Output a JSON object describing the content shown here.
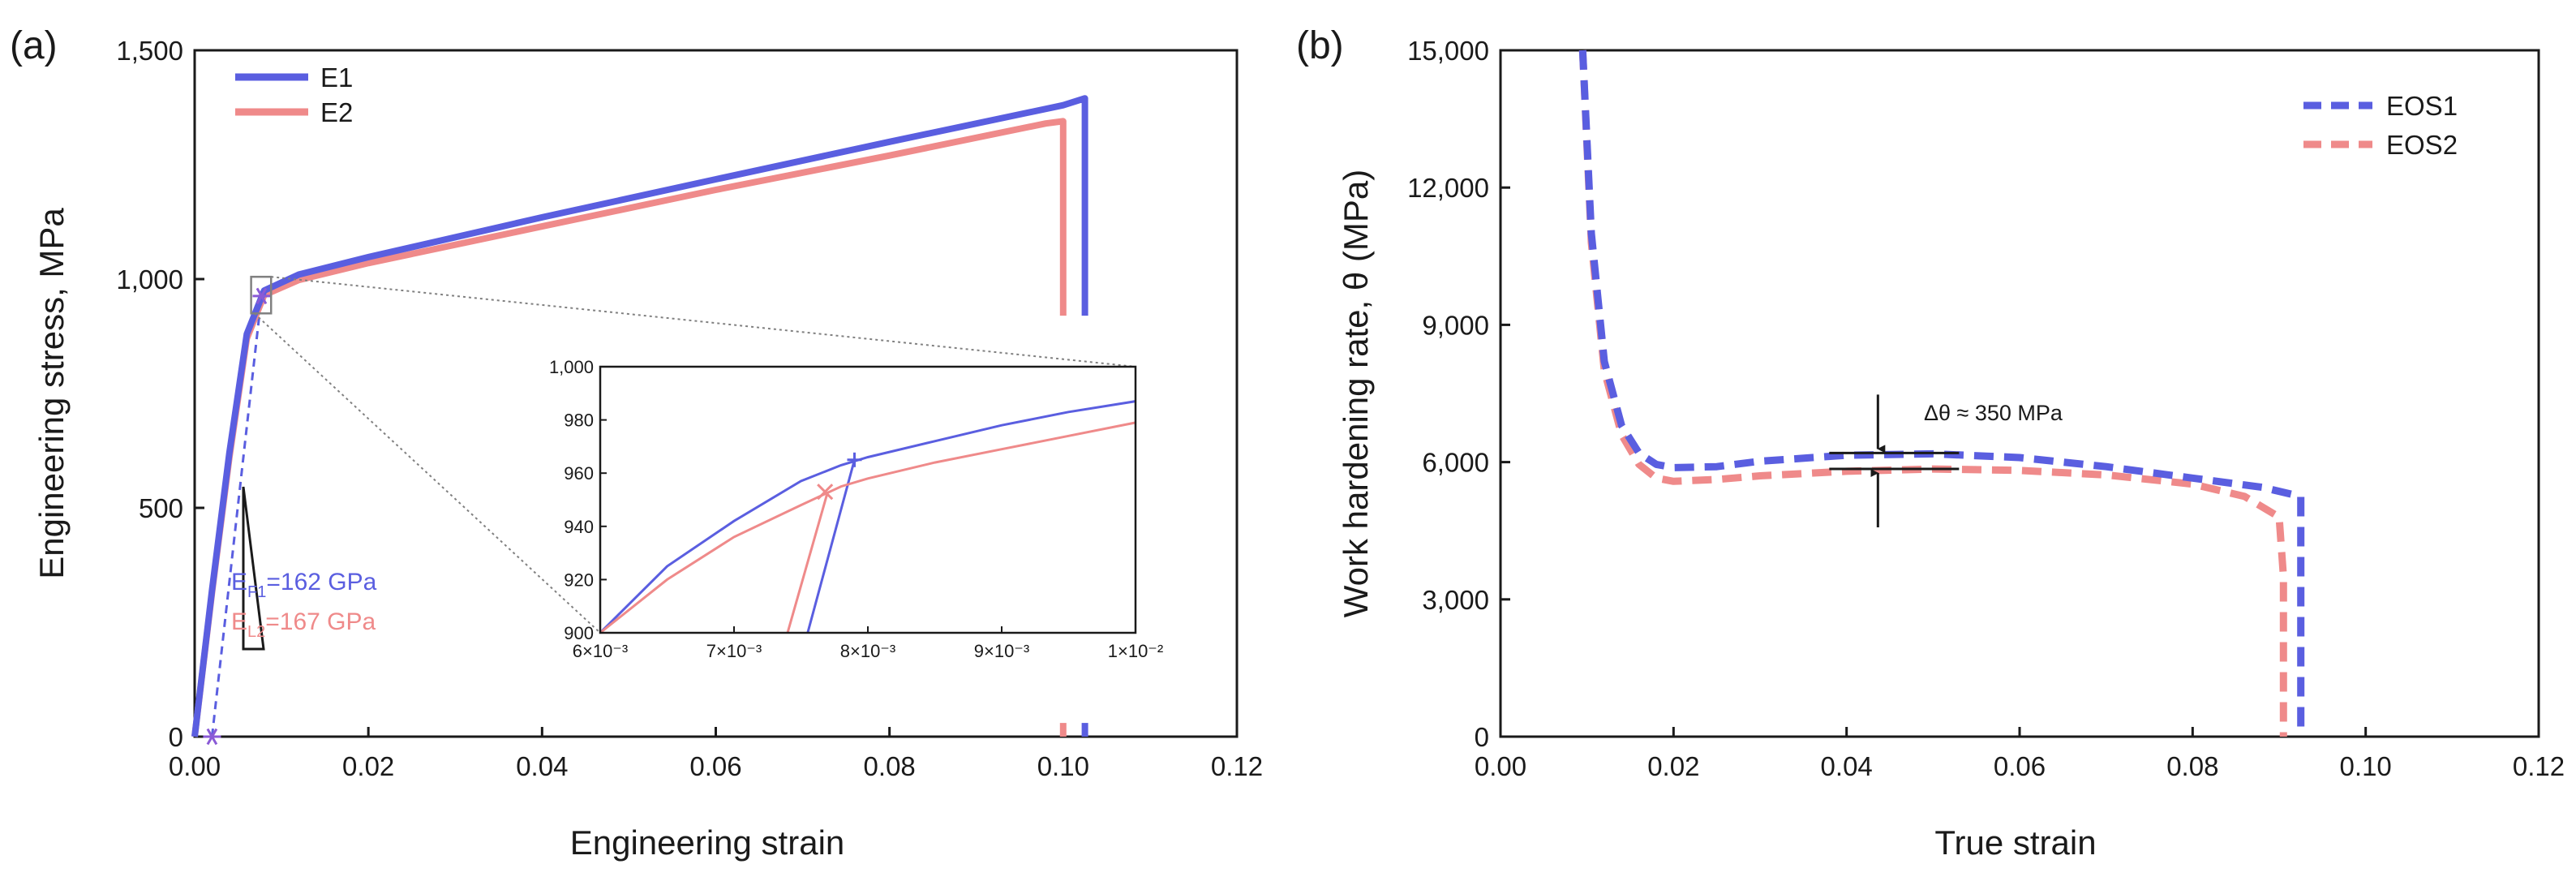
{
  "colors": {
    "series1": "#5a5ee0",
    "series2": "#ef8a8a",
    "axis": "#1a1a1a",
    "guide": "#808080"
  },
  "chart_data": [
    {
      "type": "line",
      "panel": "(a)",
      "title": "",
      "xlabel": "Engineering strain",
      "ylabel": "Engineering stress, MPa",
      "xlim": [
        0,
        0.12
      ],
      "ylim": [
        0,
        1500
      ],
      "x_ticks": [
        0.0,
        0.02,
        0.04,
        0.06,
        0.08,
        0.1,
        0.12
      ],
      "x_tick_labels": [
        "0.00",
        "0.02",
        "0.04",
        "0.06",
        "0.08",
        "0.10",
        "0.12"
      ],
      "y_ticks": [
        0,
        500,
        1000,
        1500
      ],
      "y_tick_labels": [
        "0",
        "500",
        "1,000",
        "1,500"
      ],
      "legend_position": "top-left",
      "series": [
        {
          "name": "E1",
          "color_key": "series1",
          "points": [
            [
              0.0,
              0
            ],
            [
              0.002,
              320
            ],
            [
              0.004,
              620
            ],
            [
              0.006,
              880
            ],
            [
              0.008,
              975
            ],
            [
              0.012,
              1010
            ],
            [
              0.02,
              1048
            ],
            [
              0.04,
              1135
            ],
            [
              0.06,
              1218
            ],
            [
              0.08,
              1300
            ],
            [
              0.1,
              1380
            ],
            [
              0.1025,
              1395
            ],
            [
              0.1025,
              920
            ]
          ],
          "tail": [
            [
              0.1025,
              30
            ],
            [
              0.1025,
              0
            ]
          ]
        },
        {
          "name": "E2",
          "color_key": "series2",
          "points": [
            [
              0.0,
              0
            ],
            [
              0.002,
              315
            ],
            [
              0.004,
              610
            ],
            [
              0.006,
              870
            ],
            [
              0.008,
              965
            ],
            [
              0.012,
              998
            ],
            [
              0.02,
              1035
            ],
            [
              0.04,
              1115
            ],
            [
              0.06,
              1195
            ],
            [
              0.08,
              1270
            ],
            [
              0.098,
              1340
            ],
            [
              0.1,
              1345
            ],
            [
              0.1,
              920
            ]
          ],
          "tail": [
            [
              0.1,
              30
            ],
            [
              0.1,
              0
            ]
          ]
        }
      ],
      "offset_line": [
        [
          0.002,
          0
        ],
        [
          0.0077,
          965
        ]
      ],
      "offset_marker": [
        0.002,
        0
      ],
      "yield_marker": [
        0.0077,
        963
      ],
      "zoom_box": {
        "x": [
          0.0065,
          0.0088
        ],
        "y": [
          925,
          1005
        ]
      },
      "modulus_labels": [
        {
          "main": "E",
          "sub": "F1",
          "rest": "=162 GPa",
          "color_key": "series1"
        },
        {
          "main": "E",
          "sub": "L2",
          "rest": "=167 GPa",
          "color_key": "series2"
        }
      ],
      "inset": {
        "xlim": [
          0.006,
          0.01
        ],
        "ylim": [
          900,
          1000
        ],
        "x_ticks": [
          0.006,
          0.007,
          0.008,
          0.009,
          0.01
        ],
        "x_tick_labels": [
          "6×10⁻³",
          "7×10⁻³",
          "8×10⁻³",
          "9×10⁻³",
          "1×10⁻²"
        ],
        "y_ticks": [
          900,
          920,
          940,
          960,
          980,
          1000
        ],
        "y_tick_labels": [
          "900",
          "920",
          "940",
          "960",
          "980",
          "1,000"
        ],
        "series": [
          {
            "name": "E1",
            "color_key": "series1",
            "points": [
              [
                0.006,
                900
              ],
              [
                0.0065,
                925
              ],
              [
                0.007,
                942
              ],
              [
                0.0075,
                957
              ],
              [
                0.0078,
                963
              ],
              [
                0.008,
                966
              ],
              [
                0.0085,
                972
              ],
              [
                0.009,
                978
              ],
              [
                0.0095,
                983
              ],
              [
                0.01,
                987
              ]
            ],
            "elastic": [
              [
                0.00755,
                900
              ],
              [
                0.0079,
                965
              ]
            ],
            "marker": [
              0.0079,
              965
            ],
            "marker_type": "plus"
          },
          {
            "name": "E2",
            "color_key": "series2",
            "points": [
              [
                0.006,
                900
              ],
              [
                0.0065,
                920
              ],
              [
                0.007,
                936
              ],
              [
                0.0075,
                948
              ],
              [
                0.0078,
                955
              ],
              [
                0.008,
                958
              ],
              [
                0.0085,
                964
              ],
              [
                0.009,
                969
              ],
              [
                0.0095,
                974
              ],
              [
                0.01,
                979
              ]
            ],
            "elastic": [
              [
                0.0074,
                900
              ],
              [
                0.0077,
                953
              ]
            ],
            "marker": [
              0.00768,
              953
            ],
            "marker_type": "cross"
          }
        ]
      }
    },
    {
      "type": "line",
      "panel": "(b)",
      "title": "",
      "xlabel": "True strain",
      "ylabel": "Work hardening rate, θ (MPa)",
      "xlim": [
        0,
        0.12
      ],
      "ylim": [
        0,
        15000
      ],
      "x_ticks": [
        0.0,
        0.02,
        0.04,
        0.06,
        0.08,
        0.1,
        0.12
      ],
      "x_tick_labels": [
        "0.00",
        "0.02",
        "0.04",
        "0.06",
        "0.08",
        "0.10",
        "0.12"
      ],
      "y_ticks": [
        0,
        3000,
        6000,
        9000,
        12000,
        15000
      ],
      "y_tick_labels": [
        "0",
        "3,000",
        "6,000",
        "9,000",
        "12,000",
        "15,000"
      ],
      "legend_position": "top-right",
      "line_style": "dashed",
      "series": [
        {
          "name": "EOS1",
          "color_key": "series1",
          "points": [
            [
              0.0095,
              15000
            ],
            [
              0.0105,
              11000
            ],
            [
              0.012,
              8200
            ],
            [
              0.014,
              6800
            ],
            [
              0.016,
              6200
            ],
            [
              0.018,
              5950
            ],
            [
              0.02,
              5880
            ],
            [
              0.025,
              5900
            ],
            [
              0.03,
              6020
            ],
            [
              0.04,
              6150
            ],
            [
              0.05,
              6180
            ],
            [
              0.06,
              6100
            ],
            [
              0.07,
              5900
            ],
            [
              0.08,
              5650
            ],
            [
              0.088,
              5450
            ],
            [
              0.0925,
              5250
            ],
            [
              0.0925,
              0
            ]
          ]
        },
        {
          "name": "EOS2",
          "color_key": "series2",
          "points": [
            [
              0.0095,
              15000
            ],
            [
              0.0105,
              10800
            ],
            [
              0.012,
              8000
            ],
            [
              0.014,
              6600
            ],
            [
              0.016,
              5950
            ],
            [
              0.018,
              5650
            ],
            [
              0.02,
              5580
            ],
            [
              0.025,
              5620
            ],
            [
              0.03,
              5700
            ],
            [
              0.04,
              5800
            ],
            [
              0.05,
              5850
            ],
            [
              0.06,
              5820
            ],
            [
              0.07,
              5720
            ],
            [
              0.08,
              5520
            ],
            [
              0.086,
              5250
            ],
            [
              0.09,
              4800
            ],
            [
              0.0905,
              3500
            ],
            [
              0.0905,
              0
            ]
          ]
        }
      ],
      "annotation": {
        "text": "Δθ ≈ 350 MPa",
        "x_range": [
          0.038,
          0.053
        ],
        "upper": 6200,
        "lower": 5850
      }
    }
  ]
}
